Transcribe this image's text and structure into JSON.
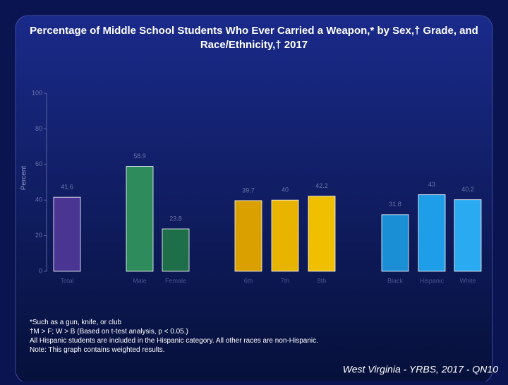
{
  "chart_data": {
    "type": "bar",
    "title": "Percentage of Middle School Students Who Ever Carried a Weapon,* by Sex,† Grade, and Race/Ethnicity,† 2017",
    "y_label": "Percent",
    "categories": [
      "Total",
      "Male",
      "Female",
      "6th",
      "7th",
      "8th",
      "Black",
      "Hispanic",
      "White"
    ],
    "values": [
      41.6,
      58.9,
      23.8,
      39.7,
      40.0,
      42.2,
      31.8,
      43.0,
      40.2
    ],
    "colors": [
      "#4b3592",
      "#2e8b5c",
      "#1f6e4a",
      "#d9a000",
      "#e8b400",
      "#f0c000",
      "#1a8fd6",
      "#1e9ee8",
      "#2aaaf0"
    ],
    "ylim": [
      0,
      100
    ],
    "yticks": [
      0,
      20,
      40,
      60,
      80,
      100
    ],
    "notes": [
      "*Such as a gun, knife, or club",
      "†M > F; W > B (Based on t-test analysis, p < 0.05.)",
      "All Hispanic students are included in the Hispanic category.  All other races are non-Hispanic.",
      "Note: This graph contains weighted results."
    ],
    "source": "West Virginia - YRBS, 2017 - QN10"
  }
}
